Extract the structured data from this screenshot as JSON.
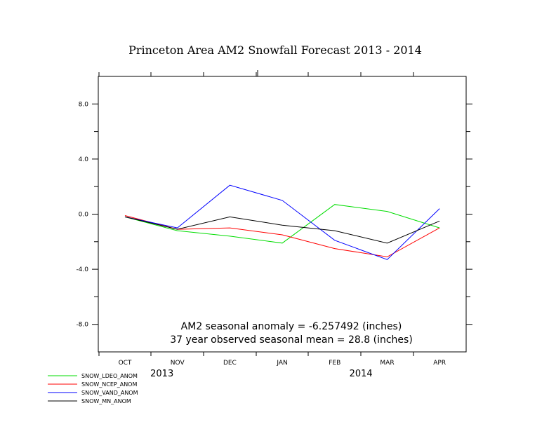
{
  "chart_data": {
    "type": "line",
    "title": "Princeton Area AM2 Snowfall Forecast 2013 - 2014",
    "xlabel": "",
    "ylabel": "",
    "categories": [
      "OCT",
      "NOV",
      "DEC",
      "JAN",
      "FEB",
      "MAR",
      "APR"
    ],
    "years": [
      {
        "label": "2013",
        "from_index": 0,
        "to_index": 2
      },
      {
        "label": "2014",
        "from_index": 3,
        "to_index": 6
      }
    ],
    "ylim": [
      -10,
      10
    ],
    "yticks": [
      -8,
      -4,
      0,
      4,
      8
    ],
    "ytick_labels": [
      "-8.0",
      "-4.0",
      "0.0",
      "4.0",
      "8.0"
    ],
    "grid": false,
    "legend_position": "bottom-left",
    "series": [
      {
        "name": "SNOW_LDEO_ANOM",
        "color": "#00dd00",
        "values": [
          -0.2,
          -1.2,
          -1.6,
          -2.1,
          0.7,
          0.2,
          -1.0
        ]
      },
      {
        "name": "SNOW_NCEP_ANOM",
        "color": "#ff0000",
        "values": [
          -0.1,
          -1.1,
          -1.0,
          -1.5,
          -2.5,
          -3.1,
          -1.0
        ]
      },
      {
        "name": "SNOW_VAND_ANOM",
        "color": "#0000ff",
        "values": [
          -0.2,
          -1.0,
          2.1,
          1.0,
          -1.9,
          -3.3,
          0.4
        ]
      },
      {
        "name": "SNOW_MN_ANOM",
        "color": "#000000",
        "values": [
          -0.2,
          -1.1,
          -0.2,
          -0.8,
          -1.2,
          -2.1,
          -0.5
        ]
      }
    ],
    "annotations": [
      "AM2 seasonal anomaly = -6.257492 (inches)",
      "37 year observed seasonal mean = 28.8 (inches)"
    ]
  }
}
